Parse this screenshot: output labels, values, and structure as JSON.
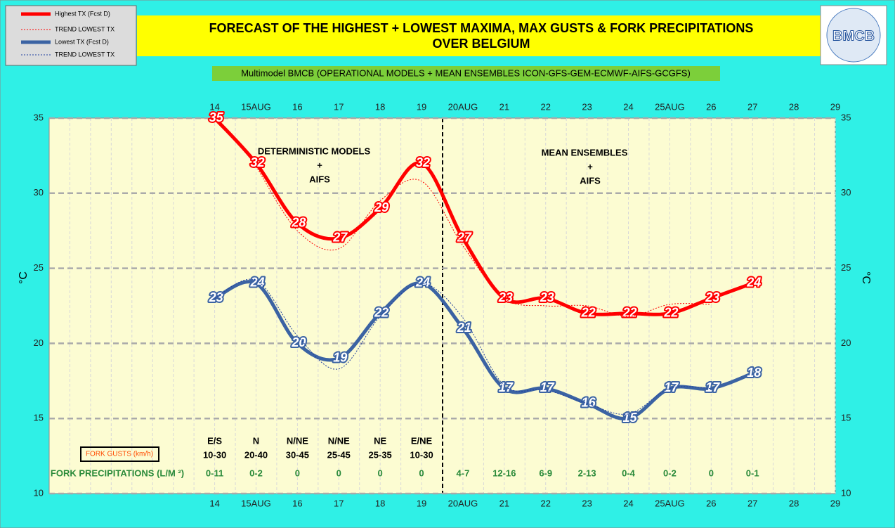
{
  "chart_data": {
    "type": "line",
    "title": [
      "FORECAST OF THE HIGHEST + LOWEST MAXIMA, MAX GUSTS & FORK PRECIPITATIONS",
      "OVER BELGIUM"
    ],
    "subtitle": "Multimodel BMCB (OPERATIONAL MODELS + MEAN ENSEMBLES  ICON-GFS-GEM-ECMWF-AIFS-GCGFS)",
    "logo": "BMCB",
    "categories": [
      "14",
      "15AUG",
      "16",
      "17",
      "18",
      "19",
      "20AUG",
      "21",
      "22",
      "23",
      "24",
      "25AUG",
      "26",
      "27",
      "28",
      "29"
    ],
    "series": [
      {
        "name": "Highest TX (Fcst D)",
        "color": "#ff0000",
        "style": "thick",
        "labels": true,
        "values": [
          35,
          32,
          28,
          27,
          29,
          32,
          27,
          23,
          23,
          22,
          22,
          22,
          23,
          24,
          null,
          null
        ]
      },
      {
        "name": "TREND LOWEST  TX",
        "color": "#ff0000",
        "style": "dotted",
        "labels": false,
        "values": [
          null,
          31.8,
          27.5,
          26.3,
          29.5,
          30.8,
          26.5,
          23,
          22.5,
          22.5,
          21.8,
          22.6,
          22.6,
          null,
          null,
          null
        ]
      },
      {
        "name": "Lowest TX (Fcst D)",
        "color": "#3b63a3",
        "style": "thick",
        "labels": true,
        "values": [
          23,
          24,
          20,
          19,
          22,
          24,
          21,
          17,
          17,
          16,
          15,
          17,
          17,
          18,
          null,
          null
        ]
      },
      {
        "name": "TREND LOWEST TX",
        "color": "#1f3fa0",
        "style": "dotted",
        "labels": false,
        "values": [
          23,
          24.2,
          20.5,
          18.3,
          21.8,
          24,
          21.7,
          17.2,
          16.9,
          16,
          15.3,
          17,
          17,
          null,
          null,
          null
        ]
      }
    ],
    "ylabel": "°C",
    "y2label": "°C",
    "ylim": [
      10,
      35
    ],
    "yticks": [
      10,
      15,
      20,
      25,
      30,
      35
    ],
    "y2lim": [
      10,
      35
    ],
    "y2ticks": [
      10,
      15,
      20,
      25,
      30,
      35
    ],
    "grid": true,
    "annotations": [
      [
        "DETERMINISTIC MODELS",
        "+",
        "AIFS"
      ],
      [
        "MEAN ENSEMBLES",
        "+",
        "AIFS"
      ]
    ],
    "gusts": {
      "label": "FORK GUSTS (km/h)",
      "directions": [
        "E/S",
        "N",
        "N/NE",
        "N/NE",
        "NE",
        "E/NE"
      ],
      "ranges": [
        "10-30",
        "20-40",
        "30-45",
        "25-45",
        "25-35",
        "10-30"
      ]
    },
    "precipitation": {
      "label": "FORK PRECIPITATIONS (L/M ²)",
      "values": [
        "0-11",
        "0-2",
        "0",
        "0",
        "0",
        "0",
        "4-7",
        "12-16",
        "6-9",
        "2-13",
        "0-4",
        "0-2",
        "0",
        "0-1"
      ]
    }
  }
}
